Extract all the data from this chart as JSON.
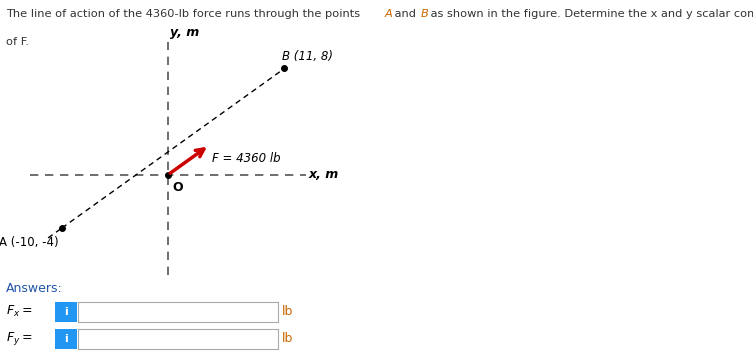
{
  "point_A": [
    -10,
    -4
  ],
  "point_B": [
    11,
    8
  ],
  "force_label": "F = 4360 lb",
  "origin_label": "O",
  "x_axis_label": "x, m",
  "y_axis_label": "y, m",
  "point_A_label": "A (-10, -4)",
  "point_B_label": "B (11, 8)",
  "arrow_color": "#cc0000",
  "answers_label": "Answers:",
  "fx_label": "$F_x=$",
  "fy_label": "$F_y=$",
  "unit_label": "lb",
  "info_btn_color": "#2196F3",
  "title_part1": "The line of action of the 4360-lb force runs through the points ",
  "title_A": "A",
  "title_mid": " and ",
  "title_B": "B",
  "title_part2": " as shown in the figure. Determine the x and y scalar components",
  "title_line2": "of F.",
  "highlight_color": "#cc6600",
  "text_color": "#333333",
  "answers_color": "#2255aa"
}
